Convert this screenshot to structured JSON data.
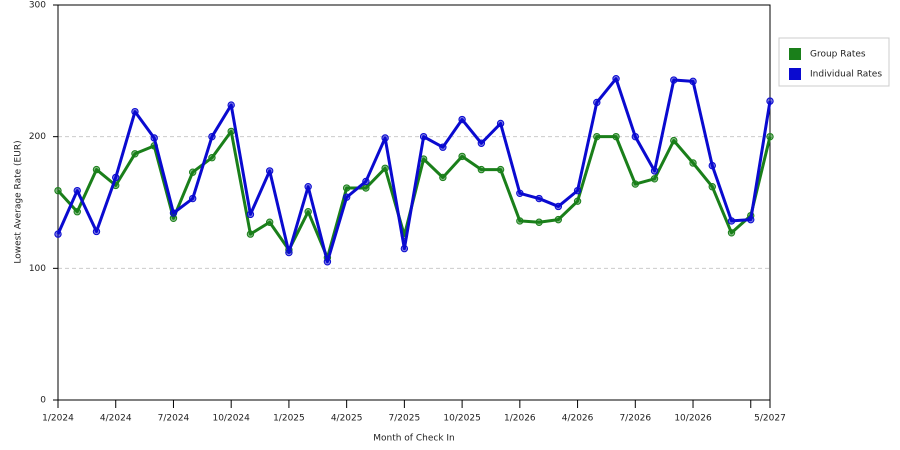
{
  "chart_data": {
    "type": "line",
    "y_label": "Lowest Average Rate (EUR)",
    "x_label": "Month of Check In",
    "categories": [
      "1/2024",
      null,
      null,
      "4/2024",
      null,
      null,
      "7/2024",
      null,
      null,
      "10/2024",
      null,
      null,
      "1/2025",
      null,
      null,
      "4/2025",
      null,
      null,
      "7/2025",
      null,
      null,
      "10/2025",
      null,
      null,
      "1/2026",
      null,
      null,
      "4/2026",
      null,
      null,
      "7/2026",
      null,
      null,
      "10/2026",
      null,
      null,
      null,
      "5/2027"
    ],
    "series": [
      {
        "name": "Group Rates",
        "color": "#1a7f1a",
        "values": [
          159,
          143,
          175,
          163,
          187,
          193,
          138,
          173,
          184,
          204,
          126,
          135,
          114,
          143,
          108,
          161,
          161,
          176,
          125,
          183,
          169,
          185,
          175,
          175,
          136,
          135,
          137,
          151,
          200,
          200,
          164,
          168,
          197,
          180,
          162,
          127,
          140,
          200
        ]
      },
      {
        "name": "Individual Rates",
        "color": "#0a0ad0",
        "values": [
          126,
          159,
          128,
          169,
          219,
          199,
          142,
          153,
          200,
          224,
          141,
          174,
          112,
          162,
          105,
          154,
          166,
          199,
          115,
          200,
          192,
          213,
          195,
          210,
          157,
          153,
          147,
          159,
          226,
          244,
          200,
          174,
          243,
          242,
          178,
          136,
          137,
          227
        ]
      }
    ],
    "ylim": [
      0,
      300
    ],
    "yticks": [
      0,
      100,
      200,
      300
    ],
    "grid": true,
    "legend": "right"
  }
}
